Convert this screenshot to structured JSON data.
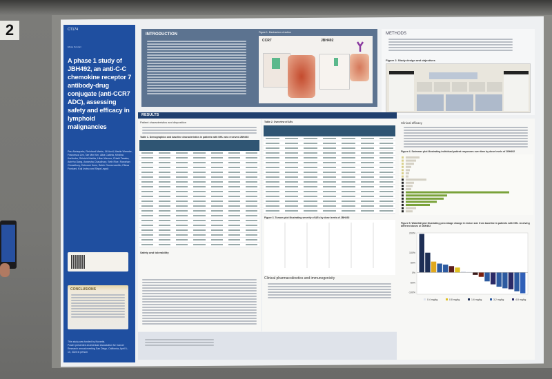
{
  "board_number": "2",
  "poster": {
    "code": "CT174",
    "presenter": "Elissa Furutani",
    "title": "A phase 1 study of JBH492, an anti-C-C chemokine receptor 7 antibody-drug conjugate (anti-CCR7 ADC), assessing safety and efficacy in lymphoid malignancies",
    "authors": "Pau Abrisqueta, Reinhard Marks, Jill Auvil, Martin Wermke, Francesca Lim, Tae Min Kim, Alba Cabirta, Kristina Karlinska, Shinichi Makita, Lilian Werner, Chiaki Tanaka, Anirrhu Dang, Anwesha Chaudhury, Seth Rice, Rowshan Chowdhury, Deborah Knee, Belén Gomezcarrillo, Elissa Furutani, Koji Izutsu and Sirpa Leppä",
    "conclusions_heading": "CONCLUSIONS",
    "funding": "This study was funded by Novartis.",
    "presented_at": "Poster presented at American Association for Cancer Research annual meeting San Diego, California, April 5–10, 2024 in person"
  },
  "introduction": {
    "heading": "INTRODUCTION",
    "figure1_title": "Figure 1. Mechanism of action",
    "panel_a": "CCR7",
    "panel_b": "JBH492"
  },
  "methods": {
    "heading": "METHODS",
    "figure2_title": "Figure 2. Study design and objectives"
  },
  "results": {
    "heading": "RESULTS",
    "patient_heading": "Patient characteristics and disposition",
    "table1_title": "Table 1. Demographics and baseline characteristics in patients with NHL who received JBH492",
    "table2_title": "Table 2. Overview of AEs",
    "safety_heading": "Safety and tolerability",
    "figure3_title": "Figure 3. Tumors plot illustrating severity of AEs by dose levels of JBH492",
    "pk_heading": "Clinical pharmacokinetics and immunogenicity",
    "efficacy_heading": "Clinical efficacy",
    "figure4_title": "Figure 4. Swimmer plot illustrating individual patient responses over time by dose levels of JBH492",
    "figure5_title": "Figure 5. Waterfall plot illustrating percentage change in lesion size from baseline in patients with NHL receiving different doses of JBH492"
  },
  "chart_data": {
    "type": "bar",
    "title": "Figure 5. Waterfall plot illustrating percentage change in lesion size from baseline in patients with NHL receiving different doses of JBH492",
    "ylim": [
      -110,
      200
    ],
    "yticks": [
      "200%",
      "100%",
      "50%",
      "0%",
      "-50%",
      "-100%"
    ],
    "ytick_values": [
      200,
      100,
      50,
      0,
      -50,
      -100
    ],
    "values": [
      195,
      100,
      55,
      45,
      40,
      32,
      25,
      6,
      3,
      -12,
      -22,
      -45,
      -60,
      -72,
      -80,
      -85,
      -95,
      -105
    ],
    "colors": [
      "#1e2f55",
      "#1e2f55",
      "#e0a81e",
      "#2c5aa0",
      "#2c5aa0",
      "#5a1e1e",
      "#e0c020",
      "#dfe4ee",
      "#dfe4ee",
      "#3a1a1a",
      "#7a2010",
      "#2c5aa0",
      "#2a2a66",
      "#2c5aa0",
      "#2c5aa0",
      "#2a2a66",
      "#2c5aa0",
      "#3060b8"
    ],
    "legend": [
      "0.4 mg/kg",
      "0.8 mg/kg",
      "1.6 mg/kg",
      "3.2 mg/kg",
      "4.8 mg/kg"
    ],
    "legend_colors": [
      "#dfe4ee",
      "#e0c020",
      "#1e2f55",
      "#2c5aa0",
      "#2a2a66"
    ]
  }
}
